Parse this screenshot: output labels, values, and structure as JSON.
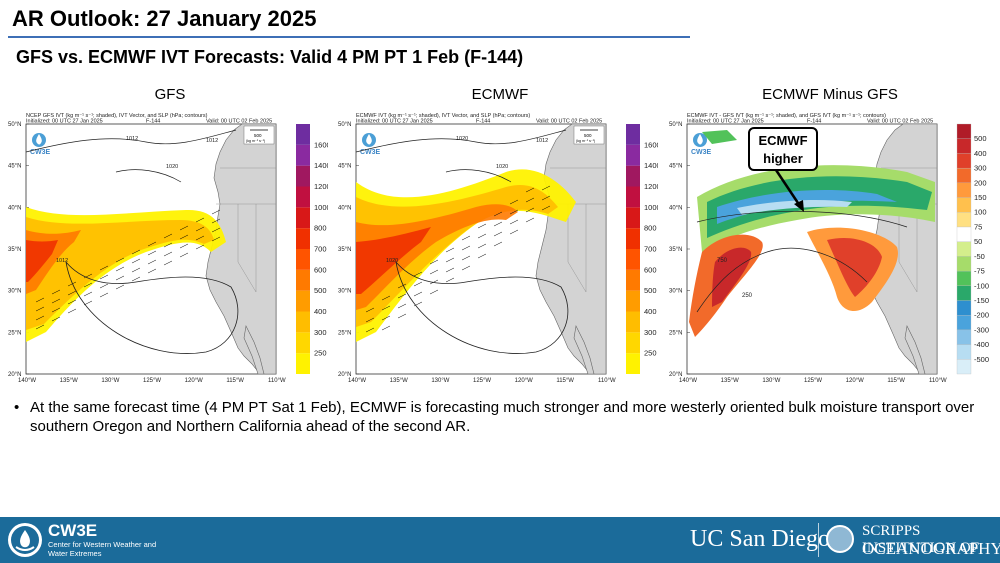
{
  "title": "AR Outlook: 27 January 2025",
  "subtitle": "GFS vs. ECMWF IVT Forecasts: Valid 4 PM PT 1 Feb (F-144)",
  "panels": [
    {
      "label": "GFS",
      "header_line1": "NCEP GFS IVT (kg m⁻¹ s⁻¹; shaded), IVT Vector, and SLP (hPa; contours)",
      "header_line2_left": "Initialized: 00 UTC 27 Jan 2025",
      "header_line2_mid": "F-144",
      "header_line2_right": "Valid: 00 UTC 02 Feb 2025",
      "logo_text": "CW3E",
      "isobar_labels": [
        "1012",
        "1020",
        "1012",
        "1012"
      ],
      "colorbar": {
        "levels": [
          "250",
          "300",
          "400",
          "500",
          "600",
          "700",
          "800",
          "1000",
          "1200",
          "1400",
          "1600"
        ],
        "colors": [
          "#fff200",
          "#ffd700",
          "#ffbd00",
          "#ff9c00",
          "#ff7a00",
          "#ff5400",
          "#f03000",
          "#d81818",
          "#c01040",
          "#a01860",
          "#8a2aa0",
          "#6e2da0"
        ]
      }
    },
    {
      "label": "ECMWF",
      "header_line1": "ECMWF IVT (kg m⁻¹ s⁻¹; shaded), IVT Vector, and SLP (hPa; contours)",
      "header_line2_left": "Initialized: 00 UTC 27 Jan 2025",
      "header_line2_mid": "F-144",
      "header_line2_right": "Valid: 00 UTC 02 Feb 2025",
      "logo_text": "CW3E",
      "isobar_labels": [
        "1020",
        "1020",
        "1012",
        "1020"
      ],
      "colorbar": {
        "levels": [
          "250",
          "300",
          "400",
          "500",
          "600",
          "700",
          "800",
          "1000",
          "1200",
          "1400",
          "1600"
        ],
        "colors": [
          "#fff200",
          "#ffd700",
          "#ffbd00",
          "#ff9c00",
          "#ff7a00",
          "#ff5400",
          "#f03000",
          "#d81818",
          "#c01040",
          "#a01860",
          "#8a2aa0",
          "#6e2da0"
        ]
      }
    },
    {
      "label": "ECMWF Minus GFS",
      "header_line1": "ECMWF IVT - GFS IVT (kg m⁻¹ s⁻¹; shaded), and GFS IVT (kg m⁻¹ s⁻¹; contours)",
      "header_line2_left": "Initialized: 00 UTC 27 Jan 2025",
      "header_line2_mid": "F-144",
      "header_line2_right": "Valid: 00 UTC 02 Feb 2025",
      "logo_text": "CW3E",
      "isobar_labels": [
        "750",
        "250"
      ],
      "colorbar": {
        "levels": [
          "500",
          "400",
          "300",
          "200",
          "150",
          "100",
          "75",
          "50",
          "-50",
          "-75",
          "-100",
          "-150",
          "-200",
          "-300",
          "-400",
          "-500"
        ],
        "colors": [
          "#d9eef8",
          "#b7ddf2",
          "#88c2e8",
          "#4aa3dc",
          "#2e8fcf",
          "#2aa86a",
          "#52c25a",
          "#a6dc6a",
          "#d4ee8c",
          "#ffffff",
          "#ffe082",
          "#ffc04d",
          "#ff9a3c",
          "#f26a2a",
          "#e0402a",
          "#c8282a",
          "#b01c28"
        ]
      }
    }
  ],
  "lat_ticks": [
    "50°N",
    "45°N",
    "40°N",
    "35°N",
    "30°N",
    "25°N",
    "20°N"
  ],
  "lon_ticks": [
    "140°W",
    "135°W",
    "130°W",
    "125°W",
    "120°W",
    "115°W",
    "110°W"
  ],
  "vector_key": {
    "value": "500",
    "units": "(kg m⁻¹ s⁻¹)"
  },
  "callout": {
    "line1": "ECMWF",
    "line2": "higher"
  },
  "bullet_text": "At the same forecast time (4 PM PT Sat 1 Feb), ECMWF is forecasting much stronger and more westerly oriented bulk moisture transport over southern Oregon and Northern California ahead of the second AR.",
  "footer": {
    "cw3e_name": "CW3E",
    "cw3e_sub": "Center for Western Weather and Water Extremes",
    "ucsd": "UC San Diego",
    "scripps_line1": "SCRIPPS INSTITUTION OF",
    "scripps_line2": "OCEANOGRAPHY"
  },
  "colors": {
    "title_rule": "#3d6fb6",
    "footer_bg": "#1b6b9a",
    "land": "#d3d3d3",
    "ocean": "#ffffff"
  }
}
